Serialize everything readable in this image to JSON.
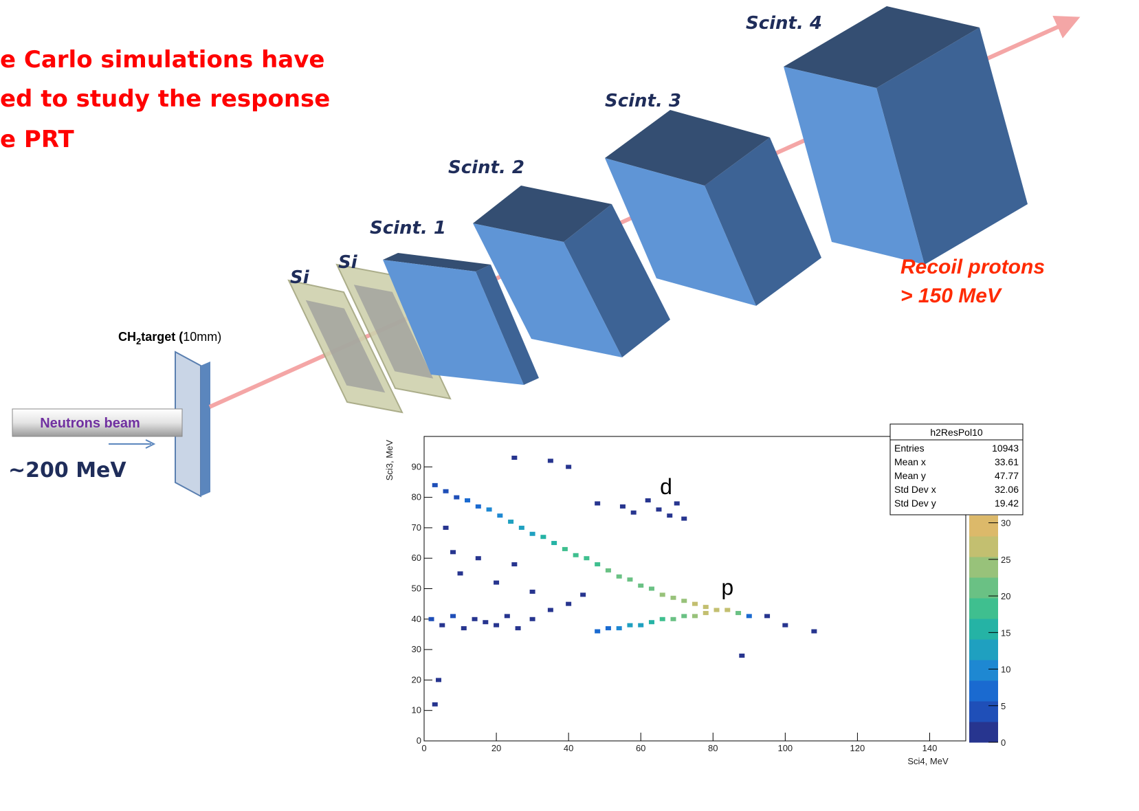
{
  "header": {
    "title_lines": [
      "e Carlo simulations have",
      "ed to study the response",
      "e PRT"
    ]
  },
  "diagram": {
    "scint_labels": [
      "Scint. 1",
      "Scint. 2",
      "Scint. 3",
      "Scint. 4"
    ],
    "si_labels": [
      "Si",
      "Si"
    ],
    "target": {
      "prefix": "CH",
      "subscript": "2",
      "name": "target (",
      "size": "10mm",
      "close": ")"
    },
    "beam": "Neutrons beam",
    "energy": "~200 MeV",
    "recoil": [
      "Recoil protons",
      "> 150 MeV"
    ]
  },
  "chart_data": {
    "type": "hist2d",
    "xlabel": "Sci4, MeV",
    "ylabel": "Sci3, MeV",
    "xlim": [
      0,
      150
    ],
    "ylim": [
      0,
      100
    ],
    "zlim": [
      0,
      31
    ],
    "xticks": [
      0,
      20,
      40,
      60,
      80,
      100,
      120,
      140
    ],
    "yticks": [
      0,
      10,
      20,
      30,
      40,
      50,
      60,
      70,
      80,
      90
    ],
    "zticks": [
      0,
      5,
      10,
      15,
      20,
      25,
      30
    ],
    "colormap": [
      "#27358f",
      "#1f4fb8",
      "#1a6ad0",
      "#1e88d2",
      "#1fa0c0",
      "#25b3a5",
      "#3fbf8f",
      "#6ac184",
      "#98c27a",
      "#c3bf70",
      "#dcb96a"
    ],
    "annotations": [
      "d",
      "p"
    ],
    "stats": {
      "title": "h2ResPol10",
      "rows": [
        [
          "Entries",
          10943
        ],
        [
          "Mean x",
          33.61
        ],
        [
          "Mean y",
          47.77
        ],
        [
          "Std Dev x",
          32.06
        ],
        [
          "Std Dev y",
          19.42
        ]
      ]
    },
    "x": [
      3,
      6,
      9,
      12,
      15,
      18,
      21,
      24,
      27,
      30,
      33,
      36,
      39,
      42,
      45,
      48,
      51,
      54,
      57,
      60,
      63,
      66,
      69,
      72,
      75,
      78,
      81,
      84,
      87,
      90,
      48,
      51,
      54,
      57,
      60,
      63,
      66,
      69,
      72,
      75,
      78,
      2,
      5,
      8,
      11,
      14,
      17,
      20,
      23,
      26,
      30,
      35,
      40,
      44,
      10,
      15,
      20,
      25,
      30,
      6,
      8,
      55,
      58,
      62,
      65,
      68,
      70,
      72,
      48,
      35,
      40,
      25,
      100,
      108,
      95,
      88,
      4,
      3
    ],
    "y": [
      84,
      82,
      80,
      79,
      77,
      76,
      74,
      72,
      70,
      68,
      67,
      65,
      63,
      61,
      60,
      58,
      56,
      54,
      53,
      51,
      50,
      48,
      47,
      46,
      45,
      44,
      43,
      43,
      42,
      41,
      36,
      37,
      37,
      38,
      38,
      39,
      40,
      40,
      41,
      41,
      42,
      40,
      38,
      41,
      37,
      40,
      39,
      38,
      41,
      37,
      40,
      43,
      45,
      48,
      55,
      60,
      52,
      58,
      49,
      70,
      62,
      77,
      75,
      79,
      76,
      74,
      78,
      73,
      78,
      92,
      90,
      93,
      38,
      36,
      41,
      28,
      20,
      12
    ],
    "z": [
      3,
      4,
      5,
      6,
      8,
      9,
      10,
      12,
      13,
      14,
      15,
      16,
      17,
      18,
      18,
      19,
      20,
      21,
      21,
      22,
      22,
      23,
      24,
      25,
      26,
      27,
      28,
      28,
      22,
      8,
      6,
      8,
      10,
      12,
      14,
      16,
      18,
      20,
      22,
      24,
      26,
      3,
      2,
      3,
      2,
      2,
      2,
      1,
      2,
      1,
      2,
      1,
      1,
      1,
      1,
      1,
      1,
      1,
      1,
      2,
      1,
      1,
      1,
      1,
      1,
      1,
      1,
      1,
      1,
      1,
      1,
      1,
      1,
      1,
      1,
      1,
      1,
      1
    ]
  }
}
